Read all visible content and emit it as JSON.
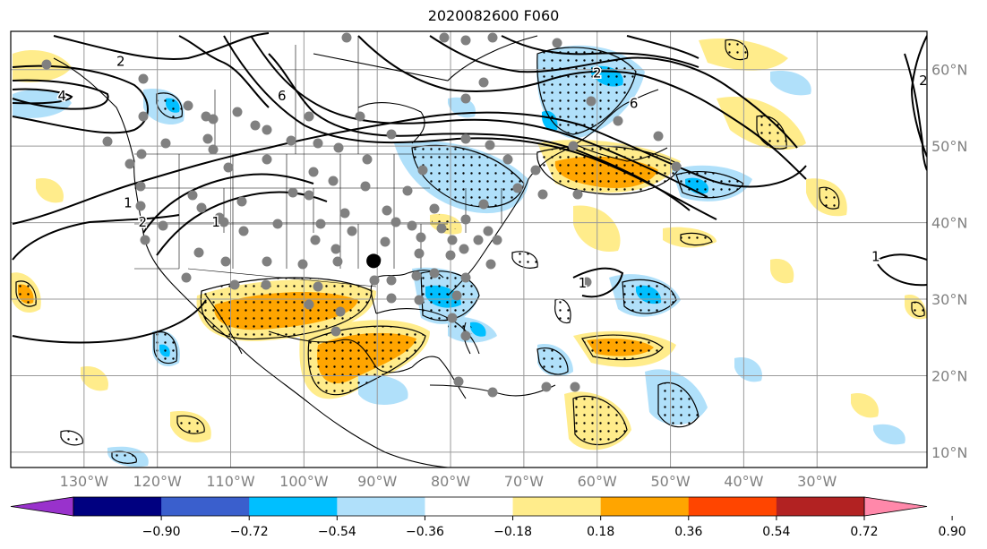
{
  "title": "2020082600 F060",
  "map": {
    "lon_range": [
      -140,
      -15
    ],
    "lat_range": [
      8,
      65
    ],
    "lon_ticks": [
      {
        "value": -130,
        "label": "130°W"
      },
      {
        "value": -120,
        "label": "120°W"
      },
      {
        "value": -110,
        "label": "110°W"
      },
      {
        "value": -100,
        "label": "100°W"
      },
      {
        "value": -90,
        "label": "90°W"
      },
      {
        "value": -80,
        "label": "80°W"
      },
      {
        "value": -70,
        "label": "70°W"
      },
      {
        "value": -60,
        "label": "60°W"
      },
      {
        "value": -50,
        "label": "50°W"
      },
      {
        "value": -40,
        "label": "40°W"
      },
      {
        "value": -30,
        "label": "30°W"
      }
    ],
    "lat_ticks": [
      {
        "value": 10,
        "label": "10°N"
      },
      {
        "value": 20,
        "label": "20°N"
      },
      {
        "value": 30,
        "label": "30°N"
      },
      {
        "value": 40,
        "label": "40°N"
      },
      {
        "value": 50,
        "label": "50°N"
      },
      {
        "value": 60,
        "label": "60°N"
      }
    ],
    "grid": true,
    "contour_labels": [
      {
        "text": "2",
        "lon": -125,
        "lat": 60.5
      },
      {
        "text": "6",
        "lon": -103,
        "lat": 56
      },
      {
        "text": "1",
        "lon": -124,
        "lat": 42
      },
      {
        "text": "2",
        "lon": -122,
        "lat": 39.5
      },
      {
        "text": "1",
        "lon": -112,
        "lat": 39.5
      },
      {
        "text": "6",
        "lon": -55,
        "lat": 55
      },
      {
        "text": "2",
        "lon": -60,
        "lat": 59
      },
      {
        "text": "1",
        "lon": -62,
        "lat": 31.5
      },
      {
        "text": "1",
        "lon": -22,
        "lat": 35
      },
      {
        "text": "2",
        "lon": -15.5,
        "lat": 58
      },
      {
        "text": "4",
        "lon": -133,
        "lat": 56
      }
    ],
    "marker_color": "#808080",
    "highlight_marker": {
      "lon": -90.5,
      "lat": 35,
      "color": "#000000"
    }
  },
  "colorbar": {
    "colors": [
      "#9932cc",
      "#000080",
      "#3a5fcd",
      "#00bfff",
      "#b0e0fa",
      "#ffffff",
      "#ffec8b",
      "#ffa500",
      "#ff4500",
      "#b22222",
      "#ff88aa"
    ],
    "tick_labels": [
      "−0.90",
      "−0.72",
      "−0.54",
      "−0.36",
      "−0.18",
      "0.18",
      "0.36",
      "0.54",
      "0.72",
      "0.90"
    ]
  }
}
